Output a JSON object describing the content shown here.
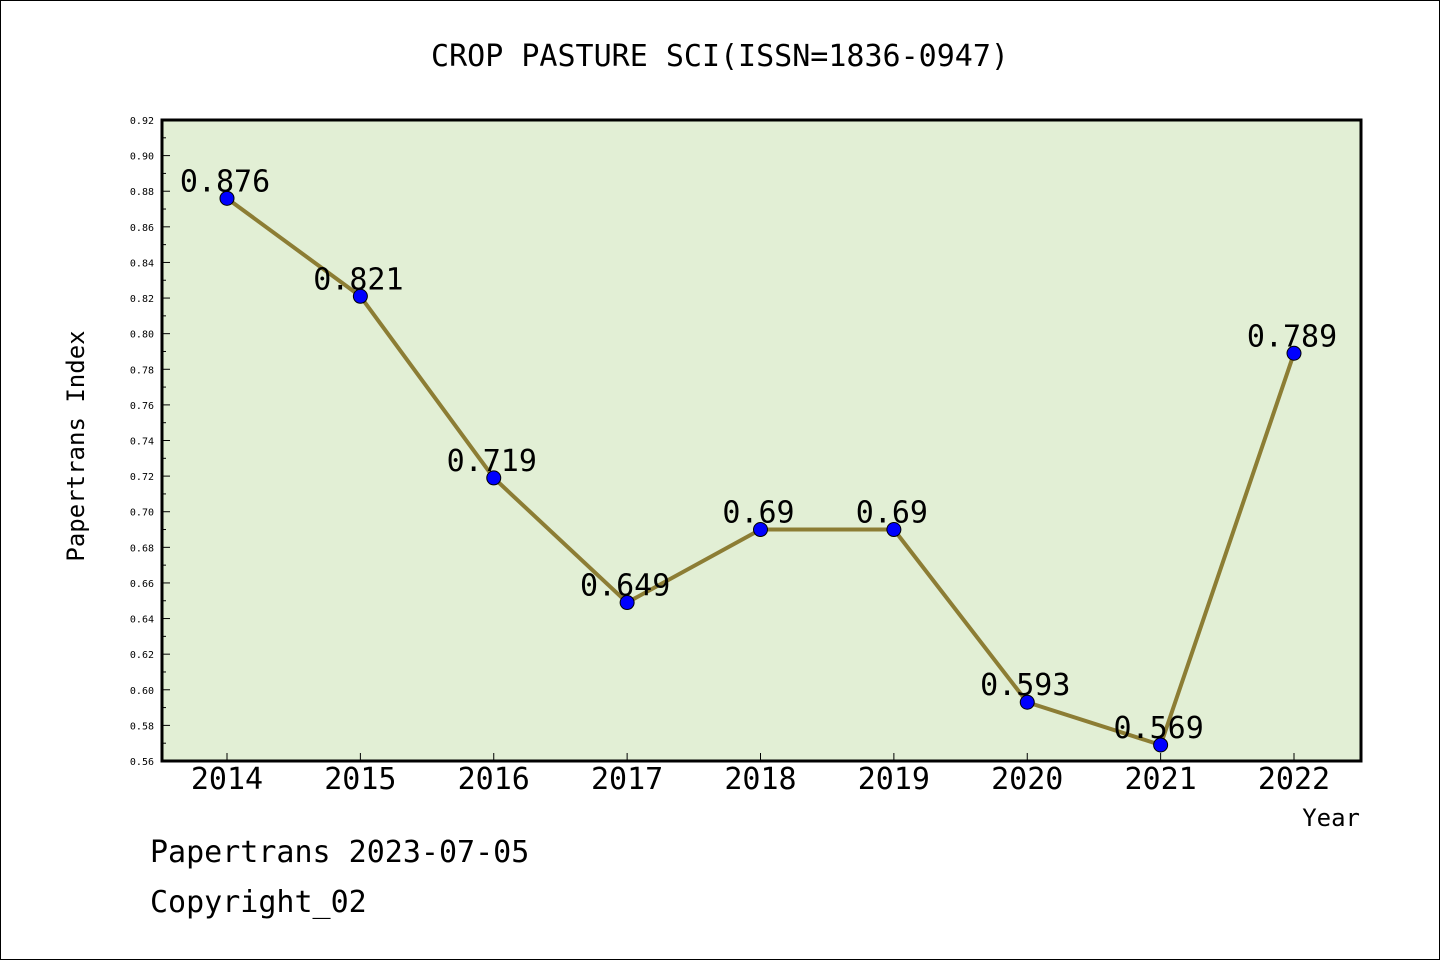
{
  "chart_data": {
    "type": "line",
    "title": "CROP PASTURE SCI(ISSN=1836-0947)",
    "xlabel": "Year",
    "ylabel": "Papertrans Index",
    "categories": [
      "2014",
      "2015",
      "2016",
      "2017",
      "2018",
      "2019",
      "2020",
      "2021",
      "2022"
    ],
    "series": [
      {
        "values": [
          0.876,
          0.821,
          0.719,
          0.649,
          0.69,
          0.69,
          0.593,
          0.569,
          0.789
        ],
        "labels": [
          "0.876",
          "0.821",
          "0.719",
          "0.649",
          "0.69",
          "0.69",
          "0.593",
          "0.569",
          "0.789"
        ]
      }
    ],
    "ylim": [
      0.56,
      0.92
    ],
    "yticks": [
      "0.56",
      "0.58",
      "0.60",
      "0.62",
      "0.64",
      "0.66",
      "0.68",
      "0.70",
      "0.72",
      "0.74",
      "0.76",
      "0.78",
      "0.80",
      "0.82",
      "0.84",
      "0.86",
      "0.88",
      "0.90",
      "0.92"
    ],
    "grid": false,
    "colors": {
      "plot_background": "#e2efd5",
      "line": "#8c7d34",
      "marker": "#0000ff"
    }
  },
  "footer": {
    "line1": "Papertrans 2023-07-05",
    "line2": "Copyright_02"
  }
}
